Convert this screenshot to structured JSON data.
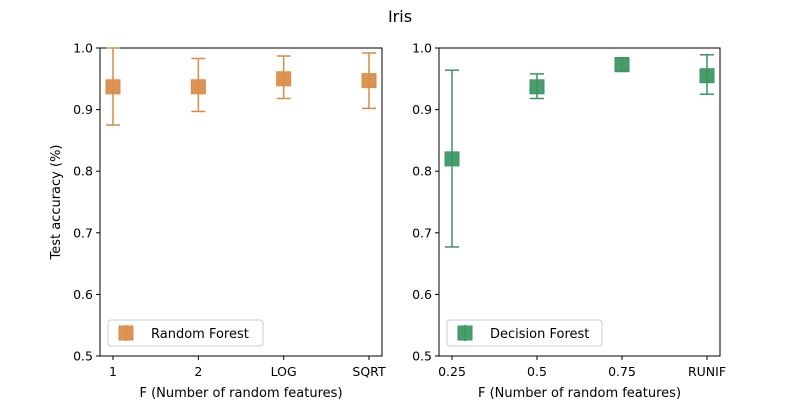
{
  "figure": {
    "title": "Iris"
  },
  "chart_data": [
    {
      "type": "scatter",
      "panel": "left",
      "ylabel": "Test accuracy (%)",
      "xlabel": "F (Number of random features)",
      "categories": [
        "1",
        "2",
        "LOG",
        "SQRT"
      ],
      "ylim": [
        0.5,
        1.0
      ],
      "yticks": [
        "0.5",
        "0.6",
        "0.7",
        "0.8",
        "0.9",
        "1.0"
      ],
      "grid": false,
      "legend_position": "lower-left",
      "series": [
        {
          "name": "Random Forest",
          "color": "#d98b45",
          "marker": "square",
          "values": [
            0.937,
            0.937,
            0.95,
            0.947
          ],
          "lower": [
            0.875,
            0.897,
            0.918,
            0.902
          ],
          "upper": [
            1.0,
            0.983,
            0.987,
            0.992
          ]
        }
      ]
    },
    {
      "type": "scatter",
      "panel": "right",
      "ylabel": "",
      "xlabel": "F (Number of random features)",
      "categories": [
        "0.25",
        "0.5",
        "0.75",
        "RUNIF"
      ],
      "ylim": [
        0.5,
        1.0
      ],
      "yticks": [
        "0.5",
        "0.6",
        "0.7",
        "0.8",
        "0.9",
        "1.0"
      ],
      "grid": false,
      "legend_position": "lower-left",
      "series": [
        {
          "name": "Decision Forest",
          "color": "#3a9560",
          "marker": "square",
          "values": [
            0.82,
            0.937,
            0.973,
            0.955
          ],
          "lower": [
            0.677,
            0.918,
            0.962,
            0.925
          ],
          "upper": [
            0.964,
            0.958,
            0.984,
            0.989
          ]
        }
      ]
    }
  ]
}
